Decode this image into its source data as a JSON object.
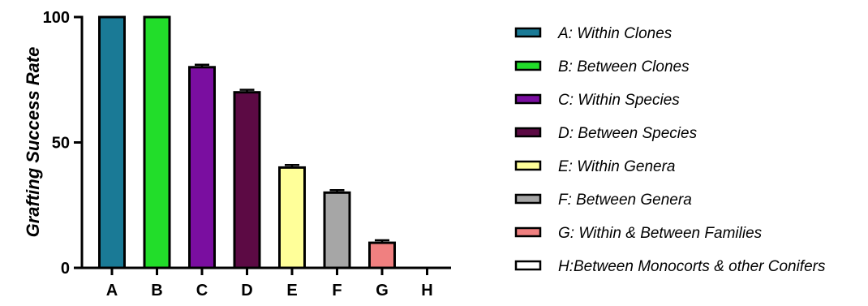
{
  "chart_data": {
    "type": "bar",
    "title": "",
    "xlabel": "",
    "ylabel": "Grafting Success Rate",
    "ylim": [
      0,
      100
    ],
    "yticks": [
      0,
      50,
      100
    ],
    "grid": false,
    "legend_position": "right",
    "categories": [
      "A",
      "B",
      "C",
      "D",
      "E",
      "F",
      "G",
      "H"
    ],
    "values": [
      100,
      100,
      80,
      70,
      40,
      30,
      10,
      0
    ],
    "errors": [
      0,
      0,
      1,
      1,
      1,
      1,
      1,
      0
    ],
    "colors": [
      "#1a7a96",
      "#22dd2a",
      "#7a0ea0",
      "#5c0a44",
      "#ffff99",
      "#a6a6a6",
      "#f08080",
      "#ffffff"
    ],
    "legend": [
      "A: Within Clones",
      "B: Between Clones",
      "C: Within Species",
      "D: Between Species",
      "E: Within Genera",
      "F: Between Genera",
      "G: Within & Between Families",
      "H:Between Monocorts & other Conifers"
    ]
  }
}
